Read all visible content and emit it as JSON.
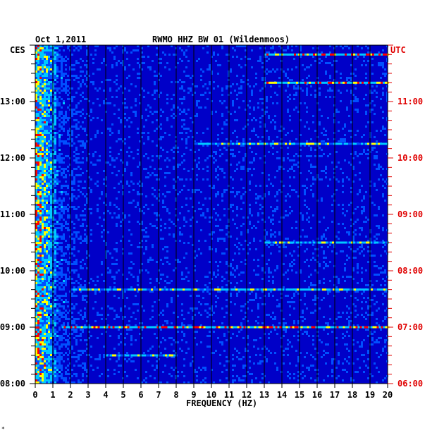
{
  "header": {
    "date": "Oct 1,2011",
    "station": "RWMO HHZ BW 01 (Wildenmoos)",
    "left_zone": "CES",
    "right_zone": "UTC"
  },
  "colors": {
    "background": "#0000c8",
    "grid": "#000000",
    "utc_text": "#e00000",
    "scale": [
      "#0000c8",
      "#0050ff",
      "#00c8ff",
      "#ffff00",
      "#ff0000"
    ]
  },
  "chart_data": {
    "type": "heatmap",
    "title": "RWMO HHZ BW 01 (Wildenmoos)",
    "xlabel": "FREQUENCY (HZ)",
    "ylabel": "",
    "xlim": [
      0,
      20
    ],
    "x_ticks": [
      "0",
      "1",
      "2",
      "3",
      "4",
      "5",
      "6",
      "7",
      "8",
      "9",
      "10",
      "11",
      "12",
      "13",
      "14",
      "15",
      "16",
      "17",
      "18",
      "19",
      "20"
    ],
    "y_ticks_left": [
      "13:00",
      "12:00",
      "11:00",
      "10:00",
      "09:00",
      "08:00"
    ],
    "y_ticks_right": [
      "11:00",
      "10:00",
      "09:00",
      "08:00",
      "07:00",
      "06:00"
    ],
    "ylim_cest_hours": [
      8.0,
      14.0
    ],
    "grid": "vertical lines every 1 Hz",
    "features": [
      {
        "name": "low-frequency band",
        "freq_range_hz": [
          0.1,
          1.2
        ],
        "time_range_cest": [
          "08:00",
          "14:00"
        ],
        "intensity": "high"
      },
      {
        "name": "burst",
        "freq_range_hz": [
          13,
          20
        ],
        "time_cest": "13:50",
        "intensity": "high"
      },
      {
        "name": "burst",
        "freq_range_hz": [
          13,
          20
        ],
        "time_cest": "13:20",
        "intensity": "high"
      },
      {
        "name": "burst",
        "freq_range_hz": [
          9,
          20
        ],
        "time_cest": "12:15",
        "intensity": "medium"
      },
      {
        "name": "burst",
        "freq_range_hz": [
          13,
          20
        ],
        "time_cest": "10:30",
        "intensity": "medium"
      },
      {
        "name": "burst",
        "freq_range_hz": [
          2,
          20
        ],
        "time_cest": "09:40",
        "intensity": "medium"
      },
      {
        "name": "burst",
        "freq_range_hz": [
          1.5,
          20
        ],
        "time_cest": "09:00",
        "intensity": "high"
      },
      {
        "name": "burst",
        "freq_range_hz": [
          4,
          8
        ],
        "time_cest": "08:30",
        "intensity": "medium"
      }
    ]
  }
}
